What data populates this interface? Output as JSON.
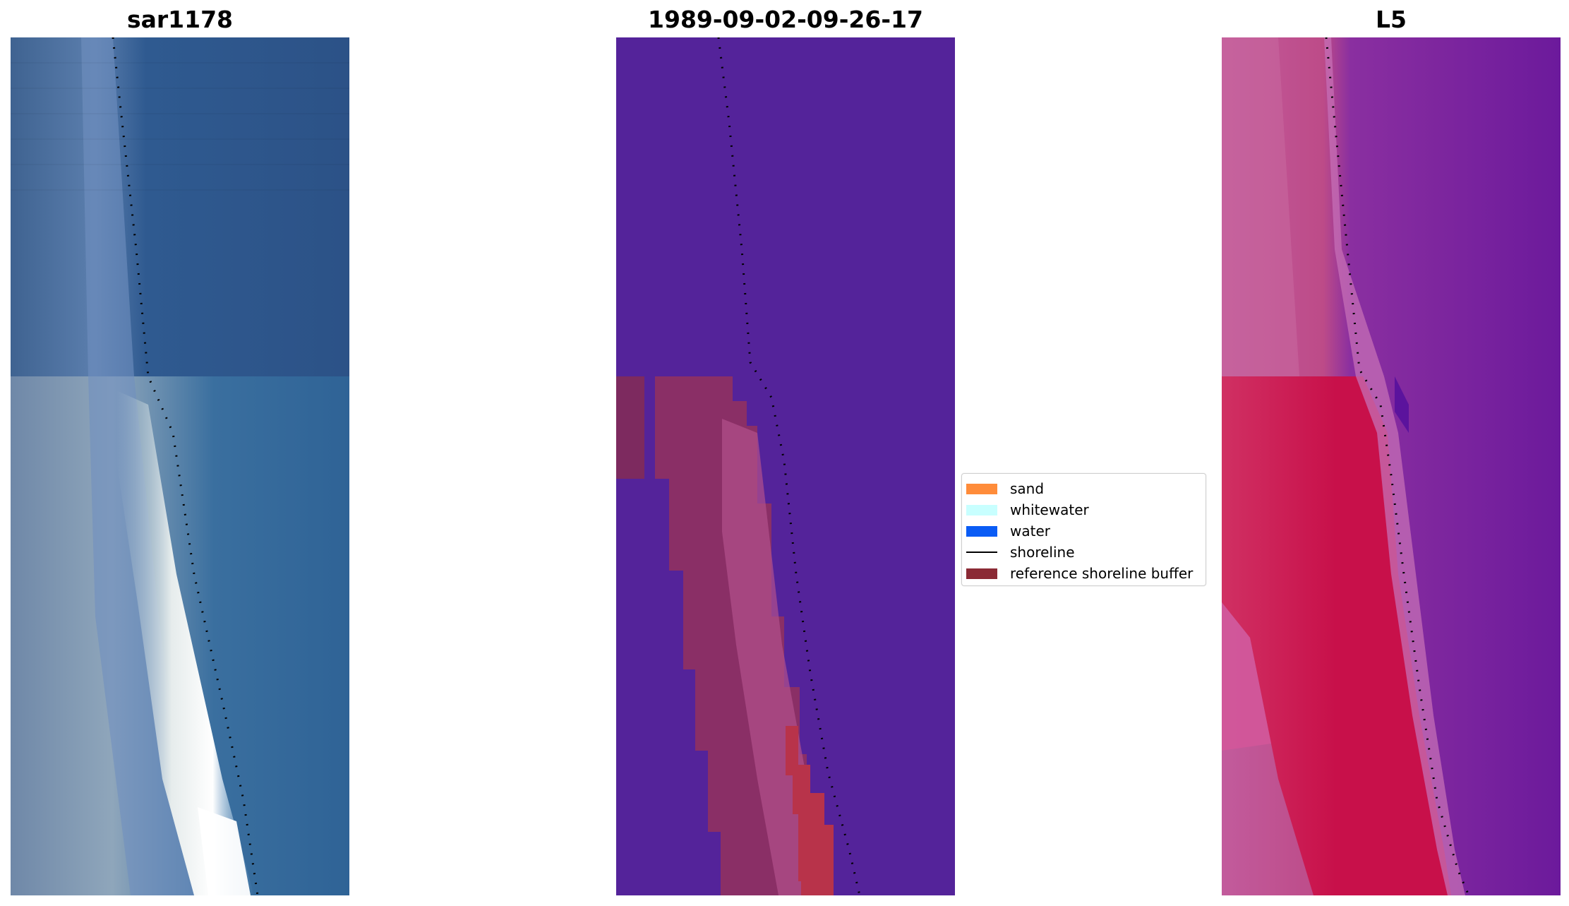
{
  "figure": {
    "panels": [
      {
        "title": "sar1178",
        "kind": "rgb-image"
      },
      {
        "title": "1989-09-02-09-26-17",
        "kind": "classified-image"
      },
      {
        "title": "L5",
        "kind": "index-image"
      }
    ]
  },
  "legend": {
    "items": [
      {
        "label": "sand",
        "color": "#ff8c3a",
        "type": "patch"
      },
      {
        "label": "whitewater",
        "color": "#c8ffff",
        "type": "patch"
      },
      {
        "label": "water",
        "color": "#0a5cf5",
        "type": "patch"
      },
      {
        "label": "shoreline",
        "color": "#000000",
        "type": "line"
      },
      {
        "label": "reference shoreline buffer",
        "color": "#8b2a35",
        "type": "patch"
      }
    ]
  },
  "colors": {
    "background_class": "#54239a",
    "buffer": "#8a2f66",
    "sand_overlap": "#b8334a",
    "rgb_water": "#2d5a90",
    "rgb_whitewater": "#f3f6f6",
    "index_land": "#c8104a",
    "index_water": "#6c1a9c"
  }
}
